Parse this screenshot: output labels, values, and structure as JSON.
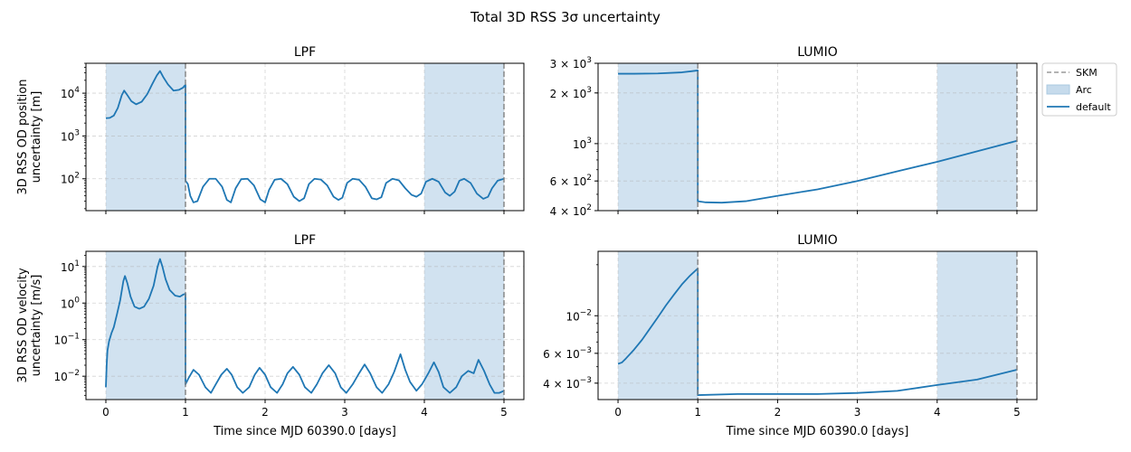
{
  "figure": {
    "suptitle": "Total 3D RSS 3σ uncertainty",
    "legend": {
      "placement": "outside upper right of top-right panel",
      "entries": [
        {
          "label": "SKM",
          "kind": "dashed-line",
          "color": "#9a9a9a"
        },
        {
          "label": "Arc",
          "kind": "patch",
          "color": "#c6dbec"
        },
        {
          "label": "default",
          "kind": "line",
          "color": "#1f77b4"
        }
      ]
    }
  },
  "chart_data": [
    {
      "id": "lpf_position",
      "type": "line",
      "title": "LPF",
      "xlabel": "",
      "ylabel": [
        "3D RSS OD position",
        "uncertainty [m]"
      ],
      "yscale": "log",
      "xlim": [
        -0.25,
        5.25
      ],
      "ylim": [
        18,
        50000
      ],
      "xticks": [
        0,
        1,
        2,
        3,
        4,
        5
      ],
      "show_xticklabels": false,
      "yticks": [
        {
          "value": 100,
          "label": "10",
          "exp": "2"
        },
        {
          "value": 1000,
          "label": "10",
          "exp": "3"
        },
        {
          "value": 10000,
          "label": "10",
          "exp": "4"
        }
      ],
      "grid": true,
      "arcs": [
        [
          0,
          1
        ],
        [
          4,
          5
        ]
      ],
      "skm": [
        1,
        5
      ],
      "series": [
        {
          "name": "default",
          "color": "#1f77b4",
          "x": [
            0,
            0.05,
            0.1,
            0.15,
            0.2,
            0.23,
            0.27,
            0.32,
            0.38,
            0.45,
            0.52,
            0.58,
            0.64,
            0.68,
            0.72,
            0.78,
            0.85,
            0.92,
            0.97,
            0.99,
            1.0,
            1.0,
            1.03,
            1.06,
            1.1,
            1.15,
            1.22,
            1.3,
            1.38,
            1.46,
            1.52,
            1.57,
            1.63,
            1.7,
            1.78,
            1.86,
            1.94,
            2.0,
            2.05,
            2.12,
            2.2,
            2.28,
            2.36,
            2.43,
            2.49,
            2.55,
            2.62,
            2.7,
            2.78,
            2.86,
            2.92,
            2.97,
            3.03,
            3.1,
            3.18,
            3.26,
            3.34,
            3.4,
            3.46,
            3.52,
            3.6,
            3.68,
            3.76,
            3.84,
            3.9,
            3.96,
            4.02,
            4.1,
            4.18,
            4.26,
            4.32,
            4.38,
            4.44,
            4.5,
            4.58,
            4.66,
            4.74,
            4.8,
            4.85,
            4.92,
            5.0
          ],
          "y": [
            2600,
            2650,
            3000,
            4500,
            9000,
            11500,
            9000,
            6500,
            5500,
            6300,
            9500,
            16000,
            26000,
            33000,
            24000,
            16000,
            11500,
            12000,
            13500,
            15000,
            15500,
            90,
            75,
            40,
            28,
            30,
            65,
            100,
            100,
            65,
            32,
            28,
            60,
            98,
            100,
            70,
            33,
            28,
            55,
            95,
            100,
            75,
            38,
            30,
            35,
            75,
            100,
            96,
            70,
            38,
            32,
            36,
            80,
            100,
            95,
            65,
            35,
            33,
            37,
            80,
            100,
            92,
            60,
            42,
            38,
            45,
            85,
            100,
            85,
            48,
            40,
            50,
            90,
            100,
            80,
            45,
            34,
            38,
            60,
            90,
            100
          ]
        }
      ]
    },
    {
      "id": "lumio_position",
      "type": "line",
      "title": "LUMIO",
      "xlabel": "",
      "ylabel": [],
      "yscale": "log",
      "xlim": [
        -0.25,
        5.25
      ],
      "ylim": [
        400,
        3000
      ],
      "xticks": [
        0,
        1,
        2,
        3,
        4,
        5
      ],
      "show_xticklabels": false,
      "yticks": [
        {
          "value": 400,
          "label": "4 × 10",
          "exp": "2"
        },
        {
          "value": 600,
          "label": "6 × 10",
          "exp": "2"
        },
        {
          "value": 1000,
          "label": "10",
          "exp": "3"
        },
        {
          "value": 2000,
          "label": "2 × 10",
          "exp": "3"
        },
        {
          "value": 3000,
          "label": "3 × 10",
          "exp": "3"
        }
      ],
      "grid": true,
      "arcs": [
        [
          0,
          1
        ],
        [
          4,
          5
        ]
      ],
      "skm": [
        1,
        5
      ],
      "series": [
        {
          "name": "default",
          "color": "#1f77b4",
          "x": [
            0,
            0.2,
            0.5,
            0.8,
            1.0,
            1.0,
            1.1,
            1.3,
            1.6,
            2.0,
            2.5,
            3.0,
            3.5,
            4.0,
            4.5,
            5.0
          ],
          "y": [
            2600,
            2600,
            2610,
            2650,
            2720,
            455,
            448,
            446,
            455,
            490,
            535,
            600,
            685,
            780,
            900,
            1040
          ]
        }
      ]
    },
    {
      "id": "lpf_velocity",
      "type": "line",
      "title": "LPF",
      "xlabel": "Time since MJD 60390.0 [days]",
      "ylabel": [
        "3D RSS OD velocity",
        "uncertainty [m/s]"
      ],
      "yscale": "log",
      "xlim": [
        -0.25,
        5.25
      ],
      "ylim": [
        0.0023,
        26
      ],
      "xticks": [
        0,
        1,
        2,
        3,
        4,
        5
      ],
      "show_xticklabels": true,
      "yticks": [
        {
          "value": 0.01,
          "label": "10",
          "exp": "−2"
        },
        {
          "value": 0.1,
          "label": "10",
          "exp": "−1"
        },
        {
          "value": 1,
          "label": "10",
          "exp": "0"
        },
        {
          "value": 10,
          "label": "10",
          "exp": "1"
        }
      ],
      "grid": true,
      "arcs": [
        [
          0,
          1
        ],
        [
          4,
          5
        ]
      ],
      "skm": [
        1,
        5
      ],
      "series": [
        {
          "name": "default",
          "color": "#1f77b4",
          "x": [
            0,
            0.01,
            0.02,
            0.04,
            0.07,
            0.1,
            0.14,
            0.18,
            0.22,
            0.24,
            0.27,
            0.31,
            0.36,
            0.42,
            0.48,
            0.54,
            0.6,
            0.65,
            0.68,
            0.71,
            0.75,
            0.8,
            0.87,
            0.93,
            0.97,
            1.0,
            1.0,
            1.04,
            1.1,
            1.17,
            1.25,
            1.32,
            1.38,
            1.45,
            1.52,
            1.58,
            1.65,
            1.72,
            1.8,
            1.87,
            1.93,
            2.0,
            2.07,
            2.15,
            2.22,
            2.28,
            2.35,
            2.43,
            2.5,
            2.58,
            2.65,
            2.72,
            2.8,
            2.88,
            2.95,
            3.02,
            3.1,
            3.18,
            3.25,
            3.32,
            3.4,
            3.47,
            3.55,
            3.62,
            3.7,
            3.76,
            3.82,
            3.9,
            3.97,
            4.05,
            4.12,
            4.18,
            4.24,
            4.32,
            4.4,
            4.47,
            4.55,
            4.62,
            4.68,
            4.75,
            4.82,
            4.88,
            4.94,
            5.0
          ],
          "y": [
            0.005,
            0.02,
            0.05,
            0.09,
            0.15,
            0.22,
            0.5,
            1.2,
            4.0,
            5.5,
            3.5,
            1.5,
            0.8,
            0.7,
            0.8,
            1.3,
            3.0,
            10.0,
            16.0,
            10.0,
            4.5,
            2.3,
            1.6,
            1.5,
            1.7,
            1.8,
            0.006,
            0.009,
            0.015,
            0.011,
            0.005,
            0.0035,
            0.006,
            0.011,
            0.016,
            0.011,
            0.005,
            0.0035,
            0.005,
            0.011,
            0.017,
            0.011,
            0.005,
            0.0035,
            0.006,
            0.012,
            0.018,
            0.011,
            0.005,
            0.0035,
            0.006,
            0.012,
            0.02,
            0.012,
            0.005,
            0.0035,
            0.006,
            0.012,
            0.021,
            0.012,
            0.005,
            0.0035,
            0.006,
            0.013,
            0.04,
            0.015,
            0.007,
            0.004,
            0.006,
            0.012,
            0.024,
            0.013,
            0.005,
            0.0035,
            0.005,
            0.01,
            0.014,
            0.012,
            0.028,
            0.014,
            0.006,
            0.0035,
            0.0035,
            0.004
          ]
        }
      ]
    },
    {
      "id": "lumio_velocity",
      "type": "line",
      "title": "LUMIO",
      "xlabel": "Time since MJD 60390.0 [days]",
      "ylabel": [],
      "yscale": "log",
      "xlim": [
        -0.25,
        5.25
      ],
      "ylim": [
        0.0032,
        0.024
      ],
      "xticks": [
        0,
        1,
        2,
        3,
        4,
        5
      ],
      "show_xticklabels": true,
      "yticks": [
        {
          "value": 0.004,
          "label": "4 × 10",
          "exp": "−3"
        },
        {
          "value": 0.006,
          "label": "6 × 10",
          "exp": "−3"
        },
        {
          "value": 0.01,
          "label": "10",
          "exp": "−2"
        }
      ],
      "grid": true,
      "arcs": [
        [
          0,
          1
        ],
        [
          4,
          5
        ]
      ],
      "skm": [
        1,
        5
      ],
      "series": [
        {
          "name": "default",
          "color": "#1f77b4",
          "x": [
            0,
            0.05,
            0.1,
            0.2,
            0.3,
            0.4,
            0.5,
            0.6,
            0.7,
            0.8,
            0.9,
            1.0,
            1.0,
            1.5,
            2.0,
            2.5,
            3.0,
            3.5,
            4.0,
            4.5,
            5.0
          ],
          "y": [
            0.0052,
            0.0053,
            0.0056,
            0.0063,
            0.0072,
            0.0084,
            0.0098,
            0.0115,
            0.0133,
            0.0153,
            0.0172,
            0.019,
            0.0034,
            0.00345,
            0.00345,
            0.00345,
            0.0035,
            0.0036,
            0.0039,
            0.0042,
            0.0048
          ]
        }
      ]
    }
  ]
}
